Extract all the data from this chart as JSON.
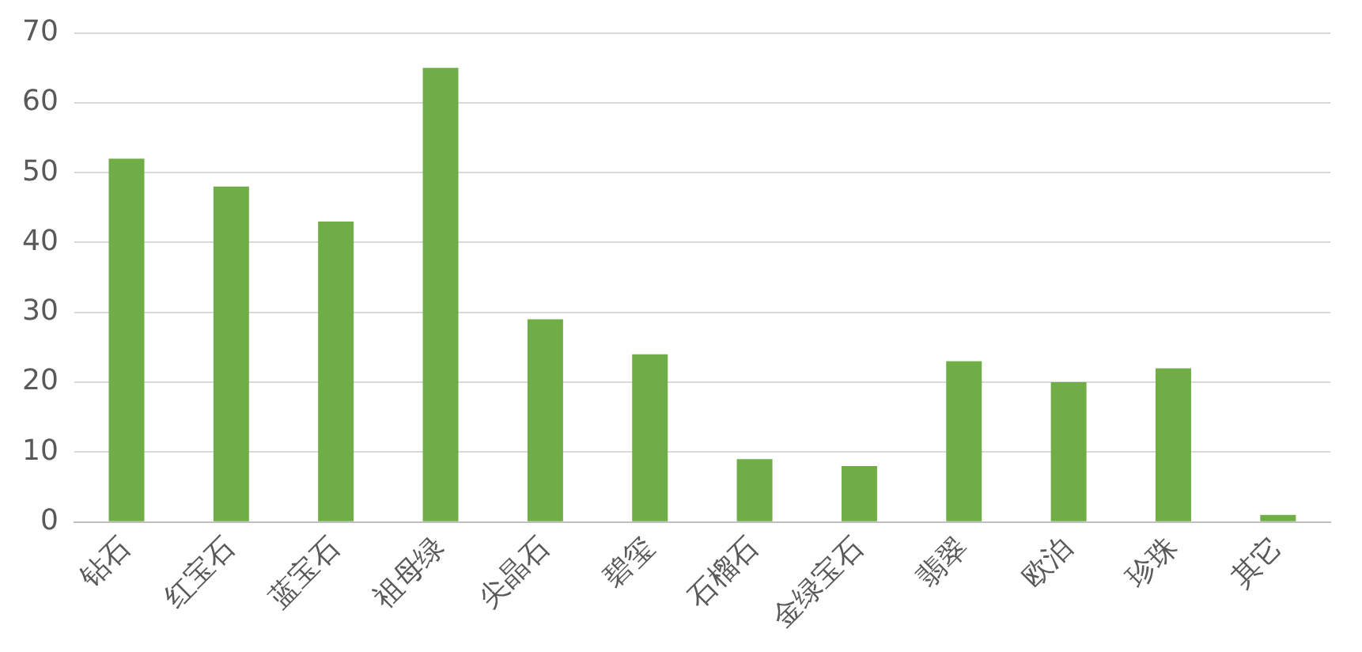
{
  "chart_data": {
    "type": "bar",
    "categories": [
      "钻石",
      "红宝石",
      "蓝宝石",
      "祖母绿",
      "尖晶石",
      "碧玺",
      "石榴石",
      "金绿宝石",
      "翡翠",
      "欧泊",
      "珍珠",
      "其它"
    ],
    "values": [
      52,
      48,
      43,
      65,
      29,
      24,
      9,
      8,
      23,
      20,
      22,
      1
    ],
    "color": "#70ad47",
    "ylim": [
      0,
      70
    ],
    "yticks": [
      0,
      10,
      20,
      30,
      40,
      50,
      60,
      70
    ],
    "grid": "y"
  }
}
